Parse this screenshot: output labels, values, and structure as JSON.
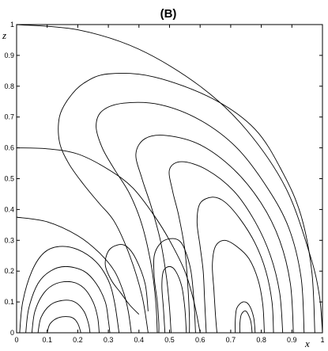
{
  "chart_data": {
    "type": "line",
    "title": "(B)",
    "xlabel": "x",
    "ylabel": "z",
    "xlim": [
      0,
      1
    ],
    "ylim": [
      0,
      1
    ],
    "xticks": [
      "0",
      "0.1",
      "0.2",
      "0.3",
      "0.4",
      "0.5",
      "0.6",
      "0.7",
      "0.8",
      "0.9",
      "1"
    ],
    "yticks": [
      "0",
      "0.1",
      "0.2",
      "0.3",
      "0.4",
      "0.5",
      "0.6",
      "0.7",
      "0.8",
      "0.9",
      "1"
    ],
    "grid": false,
    "contours": [
      {
        "name": "",
        "points": [
          [
            0,
            1
          ],
          [
            0.2,
            0.983
          ],
          [
            0.4,
            0.92
          ],
          [
            0.6,
            0.8
          ],
          [
            0.75,
            0.66
          ],
          [
            0.88,
            0.47
          ],
          [
            0.96,
            0.25
          ],
          [
            0.99,
            0.12
          ],
          [
            1.0,
            0
          ]
        ]
      },
      {
        "name": "",
        "points": [
          [
            0,
            0.6
          ],
          [
            0.1,
            0.597
          ],
          [
            0.2,
            0.58
          ],
          [
            0.3,
            0.53
          ],
          [
            0.38,
            0.47
          ],
          [
            0.45,
            0.38
          ],
          [
            0.5,
            0.3
          ],
          [
            0.55,
            0.2
          ],
          [
            0.58,
            0.1
          ],
          [
            0.6,
            0
          ]
        ]
      },
      {
        "name": "",
        "points": [
          [
            0,
            0.375
          ],
          [
            0.1,
            0.36
          ],
          [
            0.2,
            0.315
          ],
          [
            0.27,
            0.26
          ],
          [
            0.32,
            0.2
          ],
          [
            0.35,
            0.13
          ],
          [
            0.365,
            0.07
          ],
          [
            0.375,
            0
          ]
        ]
      },
      {
        "name": "",
        "points": [
          [
            0.975,
            0
          ],
          [
            0.965,
            0.2
          ],
          [
            0.93,
            0.38
          ],
          [
            0.87,
            0.52
          ],
          [
            0.78,
            0.66
          ],
          [
            0.64,
            0.76
          ],
          [
            0.45,
            0.83
          ],
          [
            0.3,
            0.84
          ],
          [
            0.22,
            0.81
          ],
          [
            0.17,
            0.76
          ],
          [
            0.14,
            0.7
          ],
          [
            0.14,
            0.62
          ],
          [
            0.17,
            0.55
          ],
          [
            0.22,
            0.48
          ],
          [
            0.27,
            0.42
          ],
          [
            0.32,
            0.36
          ],
          [
            0.37,
            0.25
          ],
          [
            0.41,
            0.12
          ],
          [
            0.43,
            0
          ]
        ]
      },
      {
        "name": "",
        "points": [
          [
            0.94,
            0
          ],
          [
            0.93,
            0.18
          ],
          [
            0.89,
            0.34
          ],
          [
            0.82,
            0.47
          ],
          [
            0.72,
            0.6
          ],
          [
            0.6,
            0.69
          ],
          [
            0.47,
            0.74
          ],
          [
            0.35,
            0.745
          ],
          [
            0.28,
            0.72
          ],
          [
            0.26,
            0.67
          ],
          [
            0.28,
            0.6
          ],
          [
            0.32,
            0.53
          ],
          [
            0.37,
            0.45
          ],
          [
            0.41,
            0.35
          ],
          [
            0.44,
            0.22
          ],
          [
            0.455,
            0.1
          ],
          [
            0.46,
            0
          ]
        ]
      },
      {
        "name": "",
        "points": [
          [
            0.905,
            0
          ],
          [
            0.895,
            0.16
          ],
          [
            0.86,
            0.3
          ],
          [
            0.8,
            0.42
          ],
          [
            0.71,
            0.53
          ],
          [
            0.6,
            0.61
          ],
          [
            0.49,
            0.64
          ],
          [
            0.42,
            0.63
          ],
          [
            0.39,
            0.58
          ],
          [
            0.41,
            0.5
          ],
          [
            0.44,
            0.41
          ],
          [
            0.47,
            0.3
          ],
          [
            0.49,
            0.18
          ],
          [
            0.5,
            0.08
          ],
          [
            0.505,
            0
          ]
        ]
      },
      {
        "name": "",
        "points": [
          [
            0.87,
            0
          ],
          [
            0.86,
            0.13
          ],
          [
            0.83,
            0.25
          ],
          [
            0.78,
            0.36
          ],
          [
            0.71,
            0.46
          ],
          [
            0.62,
            0.53
          ],
          [
            0.54,
            0.555
          ],
          [
            0.5,
            0.53
          ],
          [
            0.51,
            0.46
          ],
          [
            0.53,
            0.38
          ],
          [
            0.55,
            0.27
          ],
          [
            0.56,
            0.15
          ],
          [
            0.565,
            0.05
          ],
          [
            0.565,
            0
          ]
        ]
      },
      {
        "name": "",
        "points": [
          [
            0.84,
            0
          ],
          [
            0.835,
            0.1
          ],
          [
            0.815,
            0.2
          ],
          [
            0.78,
            0.29
          ],
          [
            0.73,
            0.37
          ],
          [
            0.68,
            0.425
          ],
          [
            0.64,
            0.44
          ],
          [
            0.6,
            0.42
          ],
          [
            0.59,
            0.36
          ],
          [
            0.6,
            0.28
          ],
          [
            0.61,
            0.2
          ],
          [
            0.615,
            0.1
          ],
          [
            0.62,
            0
          ]
        ]
      },
      {
        "name": "",
        "points": [
          [
            0.81,
            0
          ],
          [
            0.805,
            0.09
          ],
          [
            0.79,
            0.17
          ],
          [
            0.76,
            0.24
          ],
          [
            0.72,
            0.28
          ],
          [
            0.68,
            0.3
          ],
          [
            0.65,
            0.28
          ],
          [
            0.64,
            0.22
          ],
          [
            0.645,
            0.14
          ],
          [
            0.65,
            0.06
          ],
          [
            0.655,
            0
          ]
        ]
      },
      {
        "name": "",
        "points": [
          [
            0.78,
            0
          ],
          [
            0.775,
            0.05
          ],
          [
            0.76,
            0.09
          ],
          [
            0.74,
            0.1
          ],
          [
            0.72,
            0.08
          ],
          [
            0.715,
            0.04
          ],
          [
            0.715,
            0
          ]
        ]
      },
      {
        "name": "",
        "points": [
          [
            0.77,
            0
          ],
          [
            0.765,
            0.04
          ],
          [
            0.75,
            0.07
          ],
          [
            0.735,
            0.06
          ],
          [
            0.73,
            0.03
          ],
          [
            0.73,
            0
          ]
        ]
      },
      {
        "name": "",
        "points": [
          [
            0.585,
            0
          ],
          [
            0.58,
            0.1
          ],
          [
            0.57,
            0.2
          ],
          [
            0.55,
            0.27
          ],
          [
            0.53,
            0.3
          ],
          [
            0.5,
            0.305
          ],
          [
            0.47,
            0.29
          ],
          [
            0.45,
            0.25
          ],
          [
            0.45,
            0.18
          ],
          [
            0.46,
            0.1
          ],
          [
            0.465,
            0.03
          ],
          [
            0.465,
            0
          ]
        ]
      },
      {
        "name": "",
        "points": [
          [
            0.555,
            0
          ],
          [
            0.55,
            0.08
          ],
          [
            0.54,
            0.15
          ],
          [
            0.52,
            0.2
          ],
          [
            0.5,
            0.215
          ],
          [
            0.48,
            0.2
          ],
          [
            0.475,
            0.15
          ],
          [
            0.48,
            0.08
          ],
          [
            0.485,
            0
          ]
        ]
      },
      {
        "name": "",
        "points": [
          [
            0.43,
            0.07
          ],
          [
            0.42,
            0.16
          ],
          [
            0.39,
            0.24
          ],
          [
            0.36,
            0.28
          ],
          [
            0.33,
            0.285
          ],
          [
            0.3,
            0.265
          ],
          [
            0.29,
            0.22
          ],
          [
            0.31,
            0.17
          ],
          [
            0.34,
            0.13
          ],
          [
            0.37,
            0.09
          ],
          [
            0.4,
            0.06
          ]
        ]
      },
      {
        "name": "",
        "points": [
          [
            0.01,
            0
          ],
          [
            0.02,
            0.1
          ],
          [
            0.05,
            0.2
          ],
          [
            0.09,
            0.26
          ],
          [
            0.14,
            0.28
          ],
          [
            0.2,
            0.27
          ],
          [
            0.26,
            0.23
          ],
          [
            0.3,
            0.17
          ],
          [
            0.32,
            0.1
          ],
          [
            0.335,
            0
          ]
        ]
      },
      {
        "name": "",
        "points": [
          [
            0.03,
            0
          ],
          [
            0.04,
            0.08
          ],
          [
            0.07,
            0.16
          ],
          [
            0.11,
            0.2
          ],
          [
            0.16,
            0.215
          ],
          [
            0.22,
            0.2
          ],
          [
            0.26,
            0.16
          ],
          [
            0.29,
            0.1
          ],
          [
            0.3,
            0.04
          ],
          [
            0.305,
            0
          ]
        ]
      },
      {
        "name": "",
        "points": [
          [
            0.05,
            0
          ],
          [
            0.06,
            0.07
          ],
          [
            0.09,
            0.13
          ],
          [
            0.13,
            0.16
          ],
          [
            0.18,
            0.165
          ],
          [
            0.22,
            0.145
          ],
          [
            0.25,
            0.1
          ],
          [
            0.265,
            0.05
          ],
          [
            0.27,
            0
          ]
        ]
      },
      {
        "name": "",
        "points": [
          [
            0.07,
            0
          ],
          [
            0.08,
            0.05
          ],
          [
            0.11,
            0.09
          ],
          [
            0.15,
            0.105
          ],
          [
            0.19,
            0.1
          ],
          [
            0.22,
            0.07
          ],
          [
            0.235,
            0.03
          ],
          [
            0.24,
            0
          ]
        ]
      },
      {
        "name": "",
        "points": [
          [
            0.1,
            0
          ],
          [
            0.11,
            0.03
          ],
          [
            0.14,
            0.05
          ],
          [
            0.18,
            0.05
          ],
          [
            0.2,
            0.03
          ],
          [
            0.21,
            0
          ]
        ]
      }
    ]
  }
}
